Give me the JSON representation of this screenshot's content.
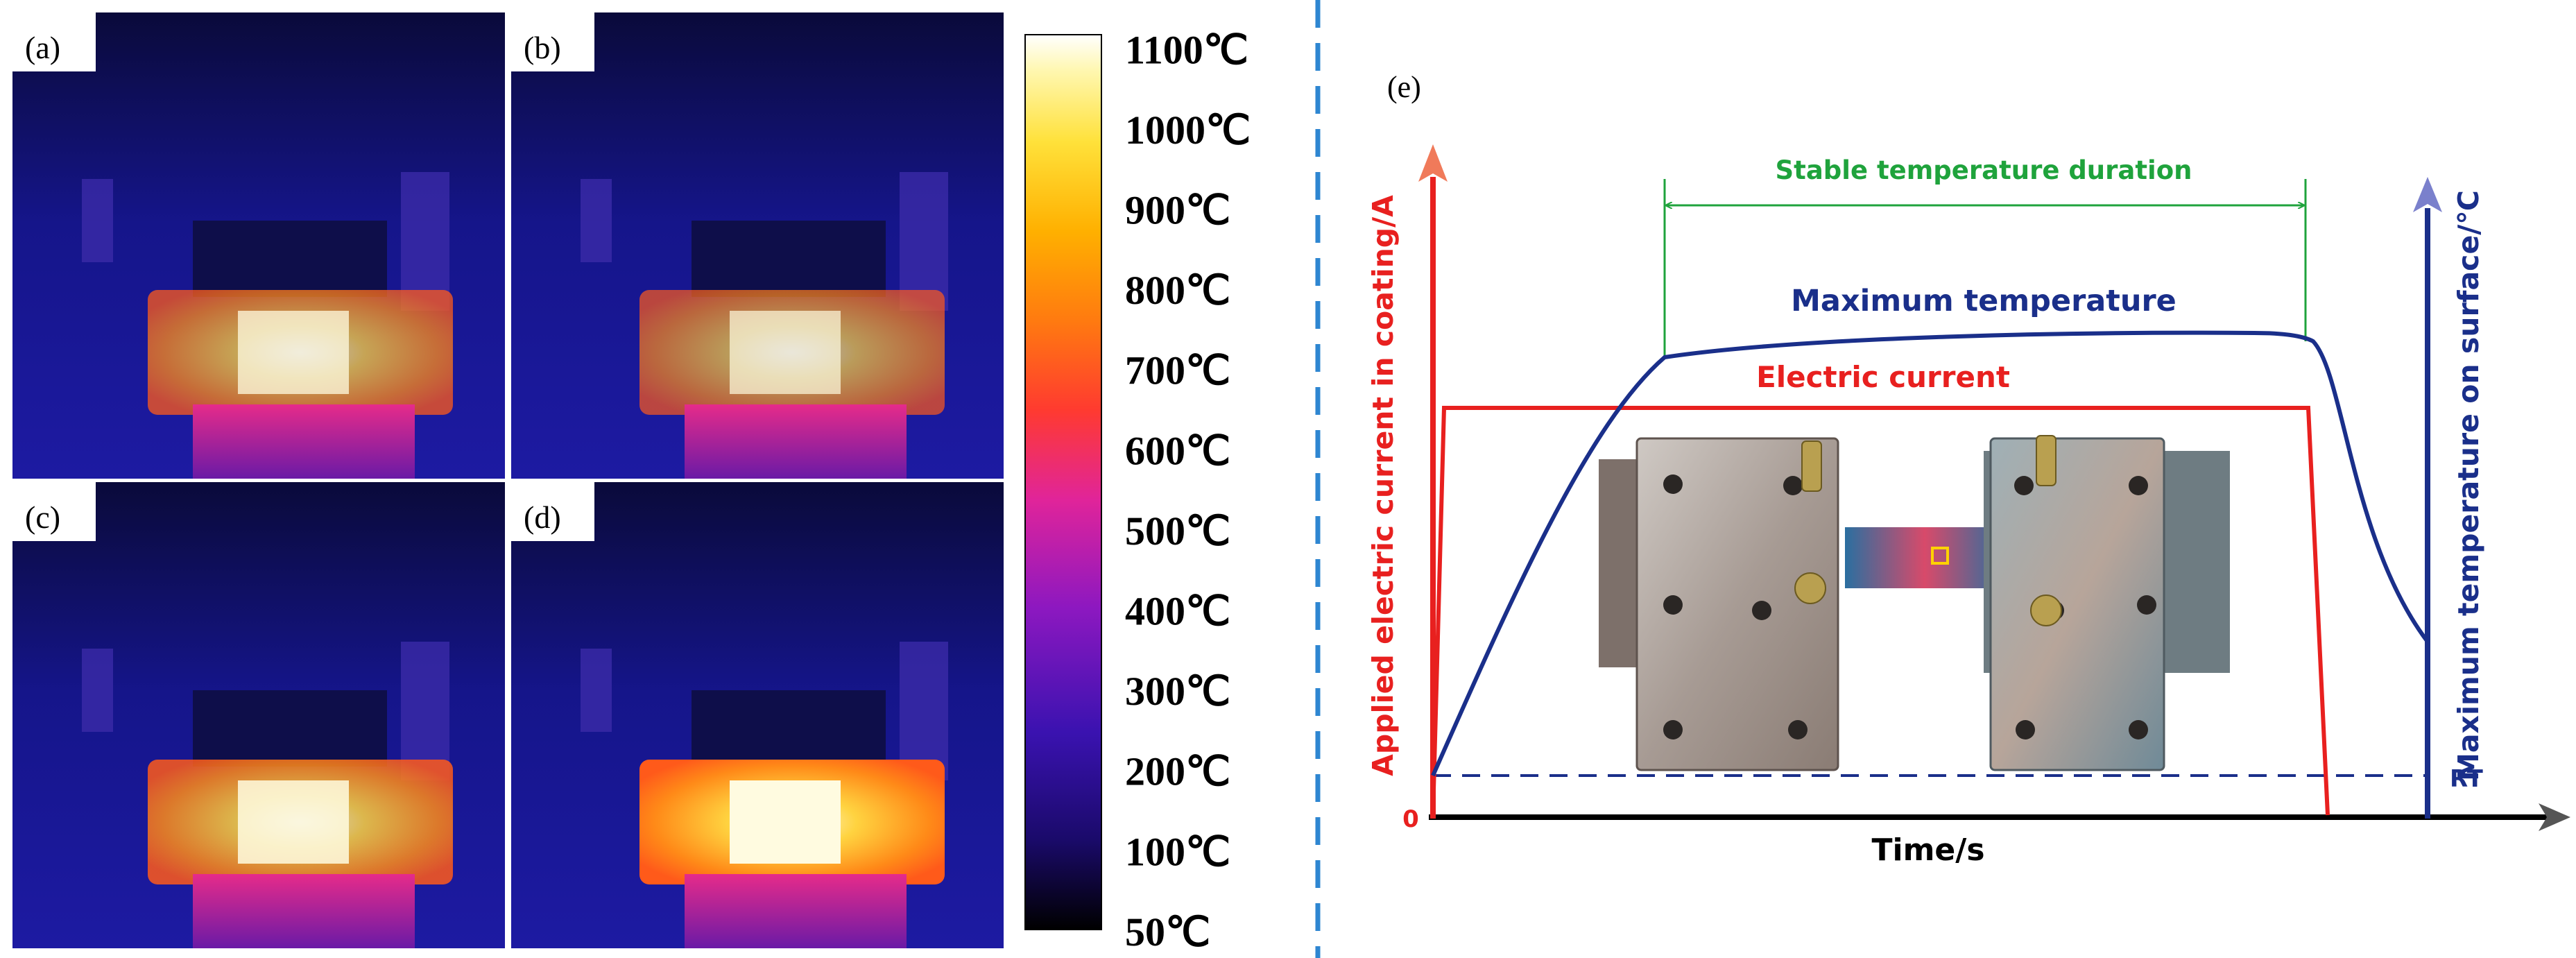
{
  "panels": {
    "a": {
      "label": "(a)",
      "glow": 0.75
    },
    "b": {
      "label": "(b)",
      "glow": 0.7
    },
    "c": {
      "label": "(c)",
      "glow": 0.85
    },
    "d": {
      "label": "(d)",
      "glow": 1.0
    }
  },
  "colorbar": {
    "ticks": [
      "1100℃",
      "1000℃",
      "900℃",
      "800℃",
      "700℃",
      "600℃",
      "500℃",
      "400℃",
      "300℃",
      "200℃",
      "100℃",
      "50℃"
    ]
  },
  "schematic": {
    "label": "(e)",
    "duration_label": "Stable temperature duration",
    "max_temp_label": "Maximum temperature",
    "current_label": "Electric current",
    "left_axis_label": "Applied electric current in coating/A",
    "right_axis_label": "Maximum temperature on surface/℃",
    "x_axis_label": "Time/s",
    "zero_label": "0",
    "rt_label": "RT"
  },
  "colors": {
    "current": "#e8201f",
    "temperature": "#1a2f8a",
    "duration": "#1fa33c",
    "divider": "#2e86d1",
    "axis": "#000000"
  }
}
